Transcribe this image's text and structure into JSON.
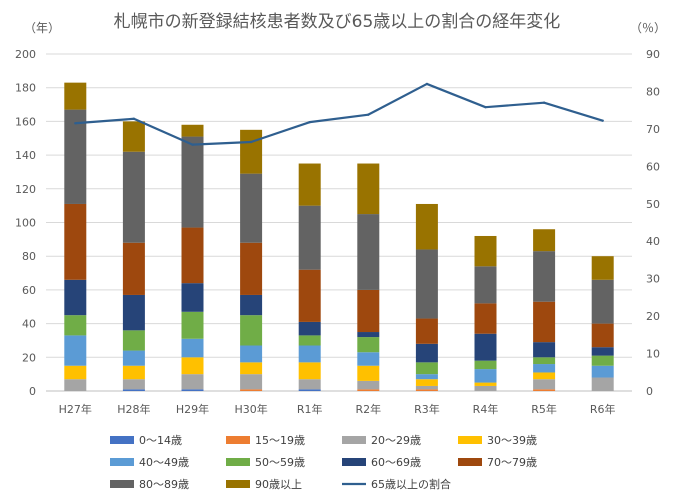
{
  "chart_data": {
    "type": "bar",
    "title": "札幌市の新登録結核患者数及び65歳以上の割合の経年変化",
    "ylabel": "（年）",
    "y2label": "（％）",
    "ylim": [
      0,
      200
    ],
    "y2lim": [
      0,
      90
    ],
    "yticks": [
      0,
      20,
      40,
      60,
      80,
      100,
      120,
      140,
      160,
      180,
      200
    ],
    "y2ticks": [
      0,
      10,
      20,
      30,
      40,
      50,
      60,
      70,
      80,
      90
    ],
    "grid": true,
    "legend_position": "bottom",
    "categories": [
      "H27年",
      "H28年",
      "H29年",
      "H30年",
      "R1年",
      "R2年",
      "R3年",
      "R4年",
      "R5年",
      "R6年"
    ],
    "series": [
      {
        "name": "0〜14歳",
        "kind": "bar",
        "color": "#4472C4",
        "values": [
          0,
          1,
          1,
          0,
          1,
          0,
          0,
          0,
          0,
          0
        ]
      },
      {
        "name": "15〜19歳",
        "kind": "bar",
        "color": "#ED7D31",
        "values": [
          0,
          0,
          0,
          1,
          0,
          1,
          1,
          0,
          1,
          0
        ]
      },
      {
        "name": "20〜29歳",
        "kind": "bar",
        "color": "#A5A5A5",
        "values": [
          7,
          6,
          9,
          9,
          6,
          5,
          2,
          3,
          6,
          8
        ]
      },
      {
        "name": "30〜39歳",
        "kind": "bar",
        "color": "#FFC000",
        "values": [
          8,
          8,
          10,
          7,
          10,
          9,
          4,
          2,
          4,
          0
        ]
      },
      {
        "name": "40〜49歳",
        "kind": "bar",
        "color": "#5B9BD5",
        "values": [
          18,
          9,
          11,
          10,
          10,
          8,
          3,
          8,
          5,
          7
        ]
      },
      {
        "name": "50〜59歳",
        "kind": "bar",
        "color": "#70AD47",
        "values": [
          12,
          12,
          16,
          18,
          6,
          9,
          7,
          5,
          4,
          6
        ]
      },
      {
        "name": "60〜69歳",
        "kind": "bar",
        "color": "#264478",
        "values": [
          21,
          21,
          17,
          12,
          8,
          3,
          11,
          16,
          9,
          5
        ]
      },
      {
        "name": "70〜79歳",
        "kind": "bar",
        "color": "#9E480E",
        "values": [
          45,
          31,
          33,
          31,
          31,
          25,
          15,
          18,
          24,
          14
        ]
      },
      {
        "name": "80〜89歳",
        "kind": "bar",
        "color": "#636363",
        "values": [
          56,
          54,
          54,
          41,
          38,
          45,
          41,
          22,
          30,
          26
        ]
      },
      {
        "name": "90歳以上",
        "kind": "bar",
        "color": "#997300",
        "values": [
          16,
          18,
          7,
          26,
          25,
          30,
          27,
          18,
          13,
          14
        ]
      },
      {
        "name": "65歳以上の割合",
        "kind": "line",
        "axis": "right",
        "color": "#2F5F8F",
        "values": [
          71.5,
          72.7,
          65.8,
          66.5,
          71.8,
          73.8,
          82.0,
          75.8,
          77.0,
          72.2
        ]
      }
    ]
  }
}
